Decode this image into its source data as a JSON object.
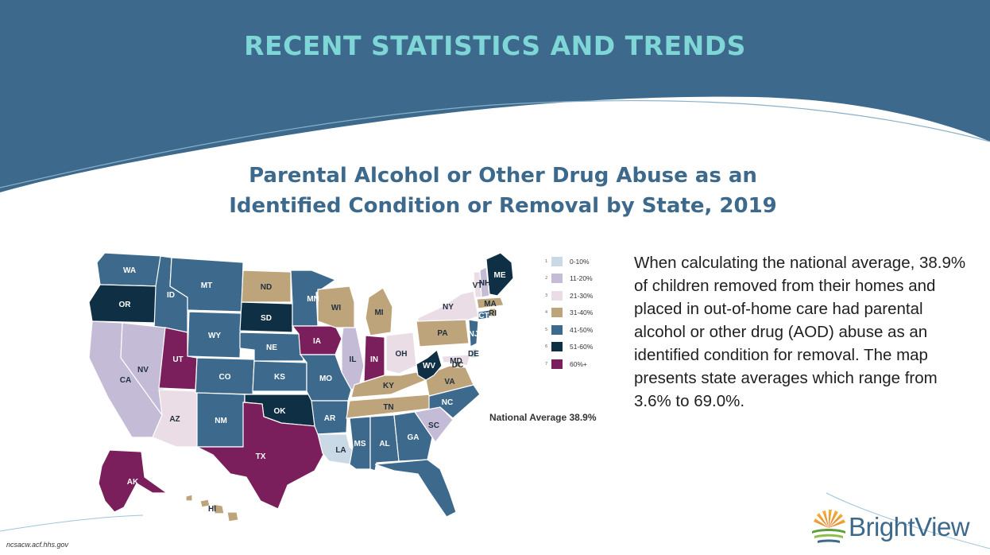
{
  "slide": {
    "title": "RECENT STATISTICS AND TRENDS",
    "subtitle_line1": "Parental Alcohol or Other Drug Abuse as an",
    "subtitle_line2": "Identified Condition or Removal by State, 2019",
    "body_text": "When calculating the national average, 38.9% of children removed from their homes and placed in out-of-home care had parental alcohol or other drug (AOD) abuse as an identified condition for removal. The map presents state averages which range from 3.6% to 69.0%.",
    "source": "ncsacw.acf.hhs.gov",
    "logo_text": "BrightView"
  },
  "colors": {
    "header_band": "#3d6a8c",
    "title": "#7fd6d6",
    "subtitle": "#3d6a8c"
  },
  "map": {
    "national_average": "National Average 38.9%",
    "legend": [
      {
        "num": "1",
        "label": "0-10%",
        "color": "#c9dae6"
      },
      {
        "num": "2",
        "label": "11-20%",
        "color": "#c4bcd6"
      },
      {
        "num": "3",
        "label": "21-30%",
        "color": "#eadde6"
      },
      {
        "num": "4",
        "label": "31-40%",
        "color": "#bda47a"
      },
      {
        "num": "5",
        "label": "41-50%",
        "color": "#3d6a8c"
      },
      {
        "num": "6",
        "label": "51-60%",
        "color": "#0f2f45"
      },
      {
        "num": "7",
        "label": "60%+",
        "color": "#7a1f5c"
      }
    ],
    "states": [
      {
        "abbr": "WA",
        "cat": 5
      },
      {
        "abbr": "OR",
        "cat": 6
      },
      {
        "abbr": "CA",
        "cat": 2
      },
      {
        "abbr": "ID",
        "cat": 5
      },
      {
        "abbr": "NV",
        "cat": 2
      },
      {
        "abbr": "MT",
        "cat": 5
      },
      {
        "abbr": "WY",
        "cat": 5
      },
      {
        "abbr": "UT",
        "cat": 7
      },
      {
        "abbr": "AZ",
        "cat": 3
      },
      {
        "abbr": "CO",
        "cat": 5
      },
      {
        "abbr": "NM",
        "cat": 5
      },
      {
        "abbr": "ND",
        "cat": 4
      },
      {
        "abbr": "SD",
        "cat": 6
      },
      {
        "abbr": "NE",
        "cat": 5
      },
      {
        "abbr": "KS",
        "cat": 5
      },
      {
        "abbr": "OK",
        "cat": 6
      },
      {
        "abbr": "TX",
        "cat": 7
      },
      {
        "abbr": "MN",
        "cat": 5
      },
      {
        "abbr": "IA",
        "cat": 7
      },
      {
        "abbr": "MO",
        "cat": 5
      },
      {
        "abbr": "AR",
        "cat": 5
      },
      {
        "abbr": "LA",
        "cat": 1
      },
      {
        "abbr": "WI",
        "cat": 4
      },
      {
        "abbr": "IL",
        "cat": 2
      },
      {
        "abbr": "MI",
        "cat": 4
      },
      {
        "abbr": "IN",
        "cat": 7
      },
      {
        "abbr": "OH",
        "cat": 3
      },
      {
        "abbr": "KY",
        "cat": 4
      },
      {
        "abbr": "TN",
        "cat": 4
      },
      {
        "abbr": "MS",
        "cat": 5
      },
      {
        "abbr": "AL",
        "cat": 5
      },
      {
        "abbr": "GA",
        "cat": 5
      },
      {
        "abbr": "FL",
        "cat": 5
      },
      {
        "abbr": "SC",
        "cat": 2
      },
      {
        "abbr": "NC",
        "cat": 5
      },
      {
        "abbr": "VA",
        "cat": 4
      },
      {
        "abbr": "WV",
        "cat": 6
      },
      {
        "abbr": "DC",
        "cat": 4
      },
      {
        "abbr": "MD",
        "cat": 3
      },
      {
        "abbr": "DE",
        "cat": 1
      },
      {
        "abbr": "PA",
        "cat": 4
      },
      {
        "abbr": "NJ",
        "cat": 5
      },
      {
        "abbr": "NY",
        "cat": 3
      },
      {
        "abbr": "CT",
        "cat": 5
      },
      {
        "abbr": "RI",
        "cat": 4
      },
      {
        "abbr": "MA",
        "cat": 4
      },
      {
        "abbr": "VT",
        "cat": 3
      },
      {
        "abbr": "NH",
        "cat": 2
      },
      {
        "abbr": "ME",
        "cat": 6
      },
      {
        "abbr": "AK",
        "cat": 7
      },
      {
        "abbr": "HI",
        "cat": 4
      }
    ]
  }
}
